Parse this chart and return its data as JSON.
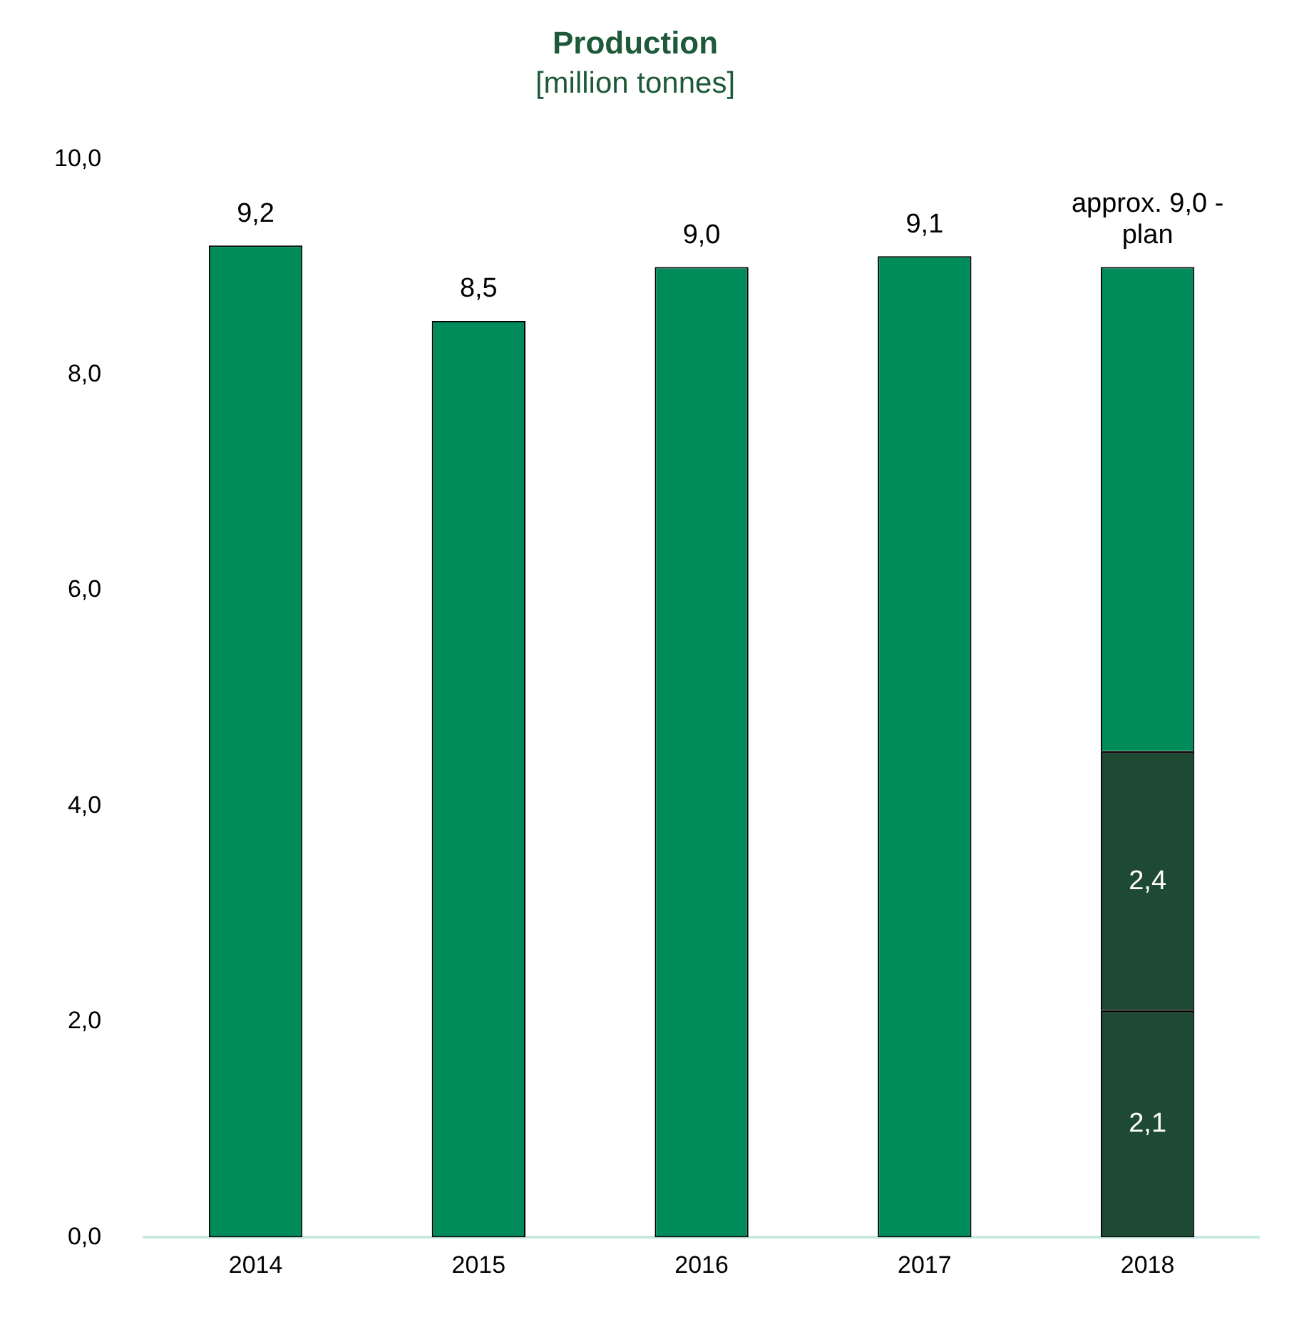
{
  "chart_data": {
    "type": "bar",
    "title": "Production",
    "subtitle": "[million tonnes]",
    "categories": [
      "2014",
      "2015",
      "2016",
      "2017",
      "2018"
    ],
    "stacked": true,
    "series": [
      {
        "color": "#1e4a33",
        "values": [
          null,
          null,
          null,
          null,
          2.1
        ],
        "value_labels": [
          null,
          null,
          null,
          null,
          "2,1"
        ]
      },
      {
        "color": "#1e4a33",
        "values": [
          null,
          null,
          null,
          null,
          2.4
        ],
        "value_labels": [
          null,
          null,
          null,
          null,
          "2,4"
        ]
      },
      {
        "color": "#008c5a",
        "values": [
          9.2,
          8.5,
          9.0,
          9.1,
          4.5
        ]
      }
    ],
    "totals": [
      "9,2",
      "8,5",
      "9,0",
      "9,1",
      "approx. 9,0 - plan"
    ],
    "ylim": [
      0,
      10
    ],
    "yticks": [
      {
        "value": 0,
        "label": "0,0"
      },
      {
        "value": 2,
        "label": "2,0"
      },
      {
        "value": 4,
        "label": "4,0"
      },
      {
        "value": 6,
        "label": "6,0"
      },
      {
        "value": 8,
        "label": "8,0"
      },
      {
        "value": 10,
        "label": "10,0"
      }
    ],
    "grid": false,
    "legend": false
  }
}
